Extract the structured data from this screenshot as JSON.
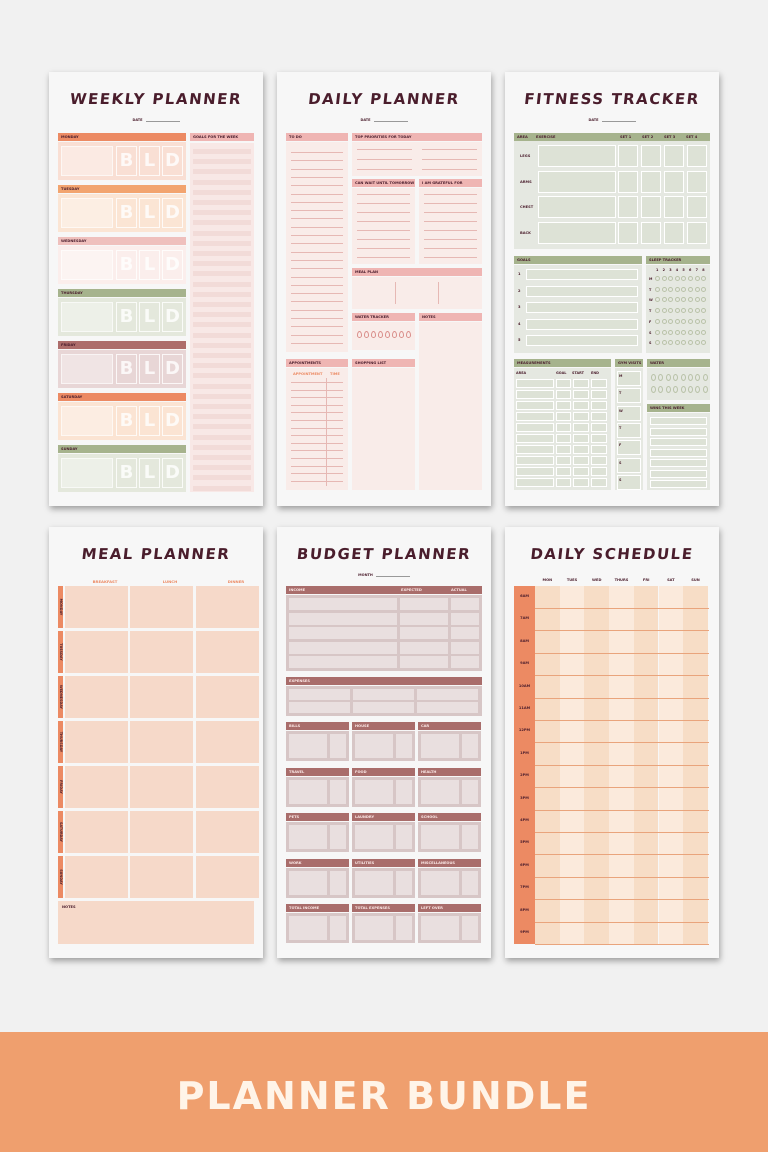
{
  "weekly": {
    "title": "WEEKLY PLANNER",
    "date_label": "DATE",
    "goals_label": "GOALS FOR THE WEEK",
    "letters": [
      "B",
      "L",
      "D"
    ],
    "days": [
      {
        "name": "MONDAY",
        "hcol": "#ec8a63",
        "bcol": "#f9dfd4"
      },
      {
        "name": "TUESDAY",
        "hcol": "#f2a46f",
        "bcol": "#fbe5d4"
      },
      {
        "name": "WEDNESDAY",
        "hcol": "#efc0bd",
        "bcol": "#fbeeec"
      },
      {
        "name": "THURSDAY",
        "hcol": "#a6b38d",
        "bcol": "#e4e8dc"
      },
      {
        "name": "FRIDAY",
        "hcol": "#ad6d6b",
        "bcol": "#e8d6d6"
      },
      {
        "name": "SATURDAY",
        "hcol": "#ec8a63",
        "bcol": "#fbe4d3"
      },
      {
        "name": "SUNDAY",
        "hcol": "#a6b38d",
        "bcol": "#e4e8dc"
      }
    ]
  },
  "daily": {
    "title": "DAILY PLANNER",
    "date_label": "DATE",
    "todo": "TO DO",
    "priorities": "TOP PRIORITIES FOR TODAY",
    "cantwait": "CAN WAIT UNTIL TOMORROW",
    "grateful": "I AM GRATEFUL FOR",
    "meal": "MEAL PLAN",
    "water": "WATER TRACKER",
    "notes": "NOTES",
    "appointments": "APPOINTMENTS",
    "appointment": "APPOINTMENT",
    "time": "TIME",
    "shopping": "SHOPPING LIST"
  },
  "fitness": {
    "title": "FITNESS TRACKER",
    "date_label": "DATE",
    "cols": [
      "AREA",
      "EXERCISE",
      "SET 1",
      "SET 2",
      "SET 3",
      "SET 4"
    ],
    "areas": [
      "LEGS",
      "ARMS",
      "CHEST",
      "BACK"
    ],
    "goals": "GOALS",
    "goal_nums": [
      "1",
      "2",
      "3",
      "4",
      "5"
    ],
    "sleep": "SLEEP TRACKER",
    "sleep_hours": [
      "1",
      "2",
      "3",
      "4",
      "5",
      "6",
      "7",
      "8"
    ],
    "days": [
      "M",
      "T",
      "W",
      "T",
      "F",
      "S",
      "S"
    ],
    "measurements": "MEASUREMENTS",
    "meas_cols": [
      "AREA",
      "GOAL",
      "START",
      "END"
    ],
    "gym": "GYM VISITS",
    "gym_days": [
      "M",
      "T",
      "W",
      "T",
      "F",
      "S",
      "S"
    ],
    "water": "WATER",
    "wins": "WINS THIS WEEK"
  },
  "meal": {
    "title": "MEAL PLANNER",
    "cols": [
      "BREAKFAST",
      "LUNCH",
      "DINNER"
    ],
    "days": [
      "MONDAY",
      "TUESDAY",
      "WEDNESDAY",
      "THURSDAY",
      "FRIDAY",
      "SATURDAY",
      "SUNDAY"
    ],
    "notes": "NOTES"
  },
  "budget": {
    "title": "BUDGET PLANNER",
    "month_label": "MONTH",
    "income": "INCOME",
    "expected": "EXPECTED",
    "actual": "ACTUAL",
    "expenses": "EXPENSES",
    "cats": [
      "BILLS",
      "HOUSE",
      "CAR",
      "TRAVEL",
      "FOOD",
      "HEALTH",
      "PETS",
      "LAUNDRY",
      "SCHOOL",
      "WORK",
      "UTILITIES",
      "MISCELLANEOUS",
      "TOTAL INCOME",
      "TOTAL EXPENSES",
      "LEFT OVER"
    ]
  },
  "schedule": {
    "title": "DAILY SCHEDULE",
    "days": [
      "MON",
      "TUES",
      "WED",
      "THURS",
      "FRI",
      "SAT",
      "SUN"
    ],
    "hours": [
      "6AM",
      "7AM",
      "8AM",
      "9AM",
      "10AM",
      "11AM",
      "12PM",
      "1PM",
      "2PM",
      "3PM",
      "4PM",
      "5PM",
      "6PM",
      "7PM",
      "8PM",
      "9PM"
    ]
  },
  "banner": {
    "text": "PLANNER BUNDLE"
  },
  "colors": {
    "banner": "#ef9f6e",
    "title": "#4a1d2c",
    "pink": "#efb5b3",
    "green": "#a6b38d",
    "maroon": "#ad6d6b",
    "orange": "#ec8a63",
    "peach": "#f6d9c9"
  }
}
